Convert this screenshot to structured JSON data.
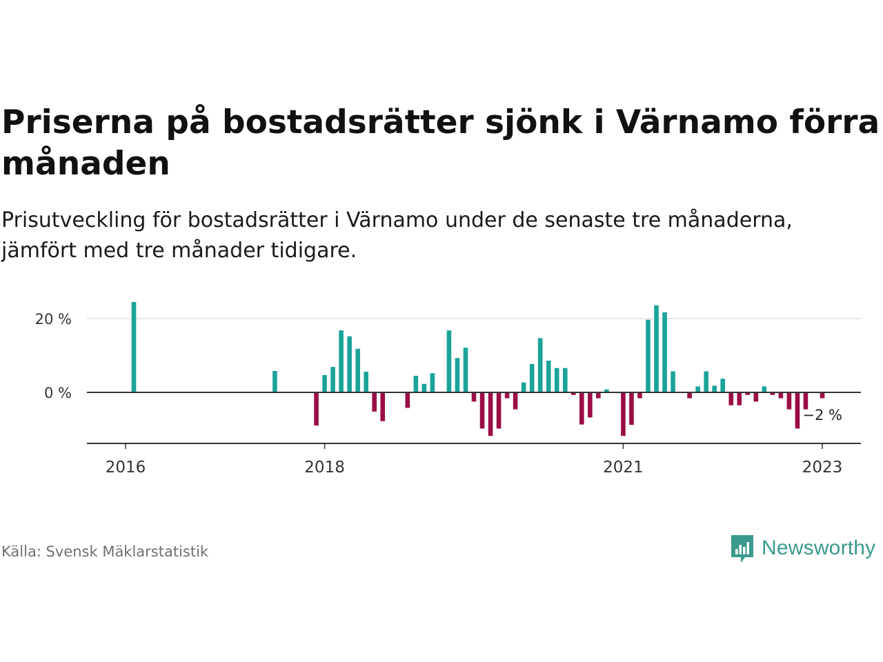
{
  "title_lines": [
    "Priserna på bostadsrätter sjönk i Värnamo förra",
    "månaden"
  ],
  "subtitle_lines": [
    "Prisutveckling för bostadsrätter i Värnamo under de senaste tre månaderna,",
    "jämfört med tre månader tidigare."
  ],
  "source": "Källa: Svensk Mäklarstatistik",
  "brand": "Newsworthy",
  "colors": {
    "positive": "#1aa39a",
    "negative": "#9b0d45",
    "axis": "#333333",
    "grid": "#dddddd",
    "text": "#333333"
  },
  "chart_data": {
    "type": "bar",
    "x_unit": "month",
    "x_range": [
      "2015-12",
      "2023-03"
    ],
    "ylim": [
      -14,
      25
    ],
    "y_ticks": [
      {
        "value": 0,
        "label": "0 %"
      },
      {
        "value": 20,
        "label": "20 %"
      }
    ],
    "x_ticks": [
      {
        "date": "2016-01",
        "label": "2016"
      },
      {
        "date": "2018-01",
        "label": "2018"
      },
      {
        "date": "2021-01",
        "label": "2021"
      },
      {
        "date": "2023-01",
        "label": "2023"
      }
    ],
    "grid": true,
    "annotation": {
      "date": "2023-01",
      "label": "−2 %"
    },
    "data": [
      {
        "date": "2016-02",
        "value": 24.5
      },
      {
        "date": "2017-07",
        "value": 5.8
      },
      {
        "date": "2017-12",
        "value": -9
      },
      {
        "date": "2018-01",
        "value": 4.7
      },
      {
        "date": "2018-02",
        "value": 6.9
      },
      {
        "date": "2018-03",
        "value": 16.8
      },
      {
        "date": "2018-04",
        "value": 15.2
      },
      {
        "date": "2018-05",
        "value": 11.8
      },
      {
        "date": "2018-06",
        "value": 5.6
      },
      {
        "date": "2018-07",
        "value": -5.2
      },
      {
        "date": "2018-08",
        "value": -7.8
      },
      {
        "date": "2018-11",
        "value": -4.2
      },
      {
        "date": "2018-12",
        "value": 4.5
      },
      {
        "date": "2019-01",
        "value": 2.3
      },
      {
        "date": "2019-02",
        "value": 5.2
      },
      {
        "date": "2019-04",
        "value": 16.8
      },
      {
        "date": "2019-05",
        "value": 9.3
      },
      {
        "date": "2019-06",
        "value": 12.1
      },
      {
        "date": "2019-07",
        "value": -2.5
      },
      {
        "date": "2019-08",
        "value": -9.8
      },
      {
        "date": "2019-09",
        "value": -11.8
      },
      {
        "date": "2019-10",
        "value": -9.8
      },
      {
        "date": "2019-11",
        "value": -1.6
      },
      {
        "date": "2019-12",
        "value": -4.6
      },
      {
        "date": "2020-01",
        "value": 2.7
      },
      {
        "date": "2020-02",
        "value": 7.7
      },
      {
        "date": "2020-03",
        "value": 14.7
      },
      {
        "date": "2020-04",
        "value": 8.6
      },
      {
        "date": "2020-05",
        "value": 6.6
      },
      {
        "date": "2020-06",
        "value": 6.6
      },
      {
        "date": "2020-07",
        "value": -0.7
      },
      {
        "date": "2020-08",
        "value": -8.7
      },
      {
        "date": "2020-09",
        "value": -6.8
      },
      {
        "date": "2020-10",
        "value": -1.6
      },
      {
        "date": "2020-11",
        "value": 0.8
      },
      {
        "date": "2021-01",
        "value": -11.8
      },
      {
        "date": "2021-02",
        "value": -8.8
      },
      {
        "date": "2021-03",
        "value": -1.6
      },
      {
        "date": "2021-04",
        "value": 19.7
      },
      {
        "date": "2021-05",
        "value": 23.6
      },
      {
        "date": "2021-06",
        "value": 21.7
      },
      {
        "date": "2021-07",
        "value": 5.7
      },
      {
        "date": "2021-09",
        "value": -1.6
      },
      {
        "date": "2021-10",
        "value": 1.6
      },
      {
        "date": "2021-11",
        "value": 5.7
      },
      {
        "date": "2021-12",
        "value": 1.8
      },
      {
        "date": "2022-01",
        "value": 3.7
      },
      {
        "date": "2022-02",
        "value": -3.5
      },
      {
        "date": "2022-03",
        "value": -3.5
      },
      {
        "date": "2022-04",
        "value": -0.7
      },
      {
        "date": "2022-05",
        "value": -2.5
      },
      {
        "date": "2022-06",
        "value": 1.6
      },
      {
        "date": "2022-07",
        "value": -0.7
      },
      {
        "date": "2022-08",
        "value": -1.6
      },
      {
        "date": "2022-09",
        "value": -4.6
      },
      {
        "date": "2022-10",
        "value": -9.8
      },
      {
        "date": "2022-11",
        "value": -4.6
      },
      {
        "date": "2023-01",
        "value": -1.6
      }
    ]
  }
}
